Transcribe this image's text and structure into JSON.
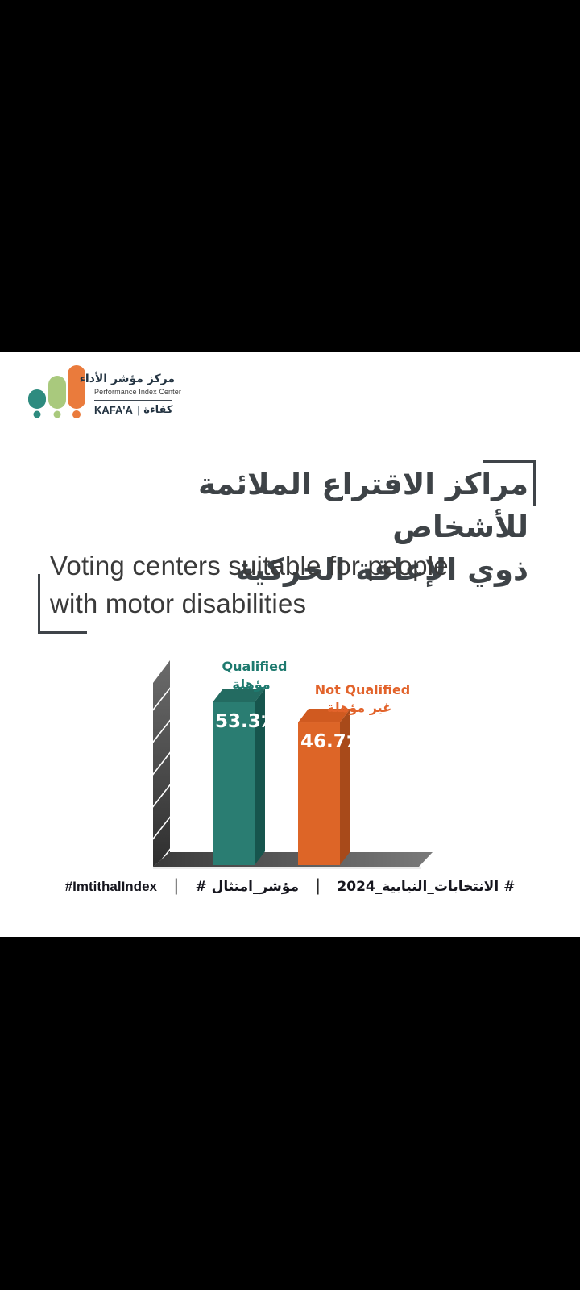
{
  "page": {
    "background": "#000000",
    "card_background": "#ffffff"
  },
  "logo": {
    "name_ar": "مركز مؤشر الأداء",
    "name_en": "Performance Index Center",
    "brand_en": "KAFA'A",
    "brand_sep": "|",
    "brand_ar": "كفاءة",
    "mark_colors": {
      "teal": "#2e8b7f",
      "green": "#a9c97d",
      "orange": "#ea7b3c"
    }
  },
  "title": {
    "ar_line1": "مراكز الاقتراع الملائمة للأشخاص",
    "ar_line2": "ذوي الإعاقة الحركية",
    "en_line1": "Voting centers suitable for people",
    "en_line2": "with motor disabilities"
  },
  "chart_data": {
    "type": "bar",
    "style": "3d",
    "axes": "none",
    "categories": [
      "Qualified",
      "Not Qualified"
    ],
    "categories_ar": [
      "مؤهلة",
      "غير مؤهلة"
    ],
    "values": [
      53.3,
      46.7
    ],
    "value_labels": [
      "53.3٪",
      "46.7٪"
    ],
    "series_colors": [
      {
        "front": "#2a7d72",
        "side": "#16554d",
        "top": "#236b61",
        "label": "#1e7a6f"
      },
      {
        "front": "#dd6527",
        "side": "#a84a1a",
        "top": "#d05a20",
        "label": "#e2632b"
      }
    ],
    "wall_color_top": "#6b6b6b",
    "wall_color_bottom": "#2e2e2e",
    "floor_color_left": "#3a3a3a",
    "floor_color_right": "#7a7a7a",
    "value_text_color": "#ffffff"
  },
  "footer": {
    "hashtag_ar_elections": "# الانتخابات_النيابية_2024",
    "hashtag_ar_index": "# مؤشر_امتثال",
    "hashtag_en": "#ImtithalIndex",
    "separator": "|"
  }
}
